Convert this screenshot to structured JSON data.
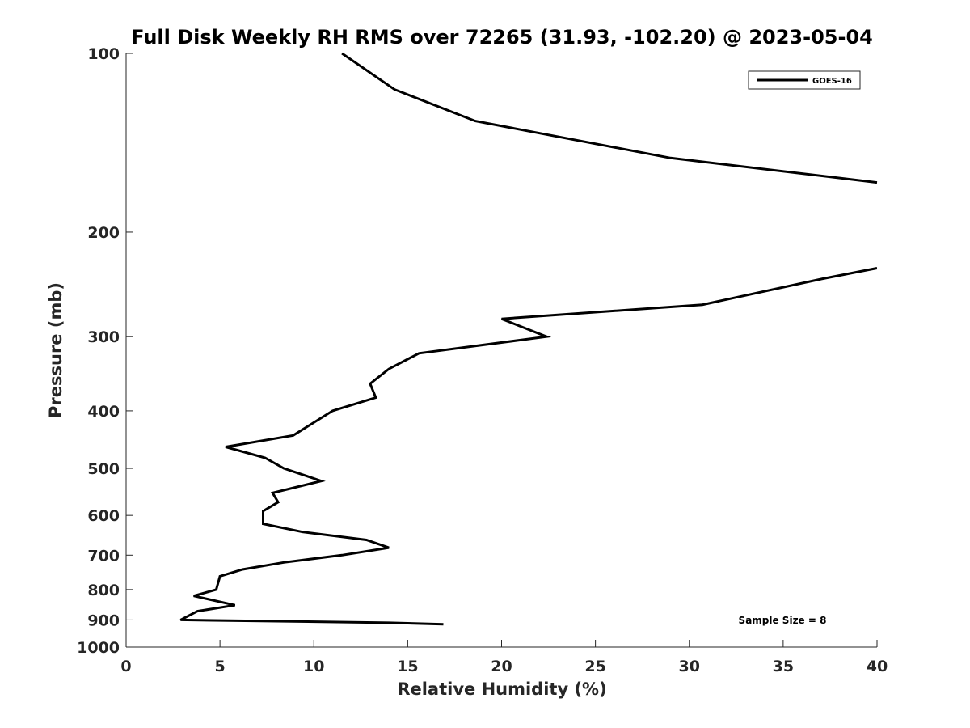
{
  "chart_data": {
    "type": "line",
    "title": "Full Disk Weekly RH RMS over 72265 (31.93, -102.20) @ 2023-05-04",
    "xlabel": "Relative Humidity (%)",
    "ylabel": "Pressure (mb)",
    "xlim": [
      0,
      40
    ],
    "ylim": [
      100,
      1000
    ],
    "yscale": "log",
    "y_reversed": true,
    "x_ticks": [
      0,
      5,
      10,
      15,
      20,
      25,
      30,
      35,
      40
    ],
    "y_ticks": [
      100,
      200,
      300,
      400,
      500,
      600,
      700,
      800,
      900,
      1000
    ],
    "grid": false,
    "legend": {
      "position": "top-right",
      "entries": [
        "GOES-16"
      ]
    },
    "annotation": "Sample Size = 8",
    "series": [
      {
        "name": "GOES-16",
        "color": "#000000",
        "segments": [
          [
            {
              "x": 11.5,
              "y": 100
            },
            {
              "x": 14.3,
              "y": 115
            },
            {
              "x": 18.6,
              "y": 130
            },
            {
              "x": 29.0,
              "y": 150
            },
            {
              "x": 40.0,
              "y": 165
            }
          ],
          [
            {
              "x": 40.0,
              "y": 230
            },
            {
              "x": 37.0,
              "y": 240
            },
            {
              "x": 30.7,
              "y": 265
            },
            {
              "x": 20.0,
              "y": 280
            },
            {
              "x": 22.4,
              "y": 300
            },
            {
              "x": 15.6,
              "y": 320
            },
            {
              "x": 14.0,
              "y": 340
            },
            {
              "x": 13.0,
              "y": 360
            },
            {
              "x": 13.3,
              "y": 380
            },
            {
              "x": 11.0,
              "y": 400
            },
            {
              "x": 8.9,
              "y": 440
            },
            {
              "x": 5.3,
              "y": 460
            },
            {
              "x": 7.4,
              "y": 480
            },
            {
              "x": 8.4,
              "y": 500
            },
            {
              "x": 10.4,
              "y": 525
            },
            {
              "x": 7.8,
              "y": 550
            },
            {
              "x": 8.1,
              "y": 570
            },
            {
              "x": 7.3,
              "y": 590
            },
            {
              "x": 7.3,
              "y": 620
            },
            {
              "x": 9.4,
              "y": 640
            },
            {
              "x": 12.8,
              "y": 660
            },
            {
              "x": 14.0,
              "y": 680
            },
            {
              "x": 11.5,
              "y": 700
            },
            {
              "x": 8.4,
              "y": 720
            },
            {
              "x": 6.2,
              "y": 740
            },
            {
              "x": 5.0,
              "y": 760
            },
            {
              "x": 4.8,
              "y": 800
            },
            {
              "x": 3.6,
              "y": 820
            },
            {
              "x": 5.8,
              "y": 850
            },
            {
              "x": 3.8,
              "y": 870
            },
            {
              "x": 2.9,
              "y": 900
            },
            {
              "x": 14.0,
              "y": 910
            },
            {
              "x": 16.9,
              "y": 915
            }
          ]
        ]
      }
    ]
  }
}
